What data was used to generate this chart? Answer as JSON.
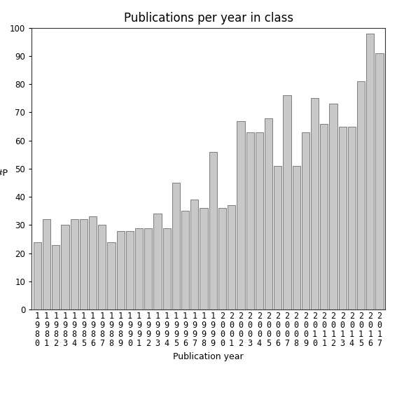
{
  "title": "Publications per year in class",
  "xlabel": "Publication year",
  "ylabel": "#P",
  "years": [
    "1980",
    "1981",
    "1982",
    "1983",
    "1984",
    "1985",
    "1986",
    "1987",
    "1988",
    "1989",
    "1990",
    "1991",
    "1992",
    "1993",
    "1994",
    "1995",
    "1996",
    "1997",
    "1998",
    "1999",
    "2000",
    "2001",
    "2002",
    "2003",
    "2004",
    "2005",
    "2006",
    "2007",
    "2008",
    "2009",
    "2010",
    "2011",
    "2012",
    "2013",
    "2014",
    "2015",
    "2016",
    "2017"
  ],
  "values": [
    24,
    32,
    23,
    30,
    32,
    32,
    33,
    30,
    24,
    28,
    28,
    29,
    29,
    34,
    29,
    45,
    35,
    39,
    36,
    56,
    36,
    37,
    67,
    63,
    63,
    68,
    51,
    76,
    51,
    63,
    75,
    66,
    73,
    65,
    65,
    81,
    98,
    91
  ],
  "bar_color": "#c8c8c8",
  "bar_edgecolor": "#555555",
  "ylim": [
    0,
    100
  ],
  "yticks": [
    0,
    10,
    20,
    30,
    40,
    50,
    60,
    70,
    80,
    90,
    100
  ],
  "bg_color": "#ffffff",
  "title_fontsize": 12,
  "label_fontsize": 9,
  "tick_fontsize": 8.5
}
